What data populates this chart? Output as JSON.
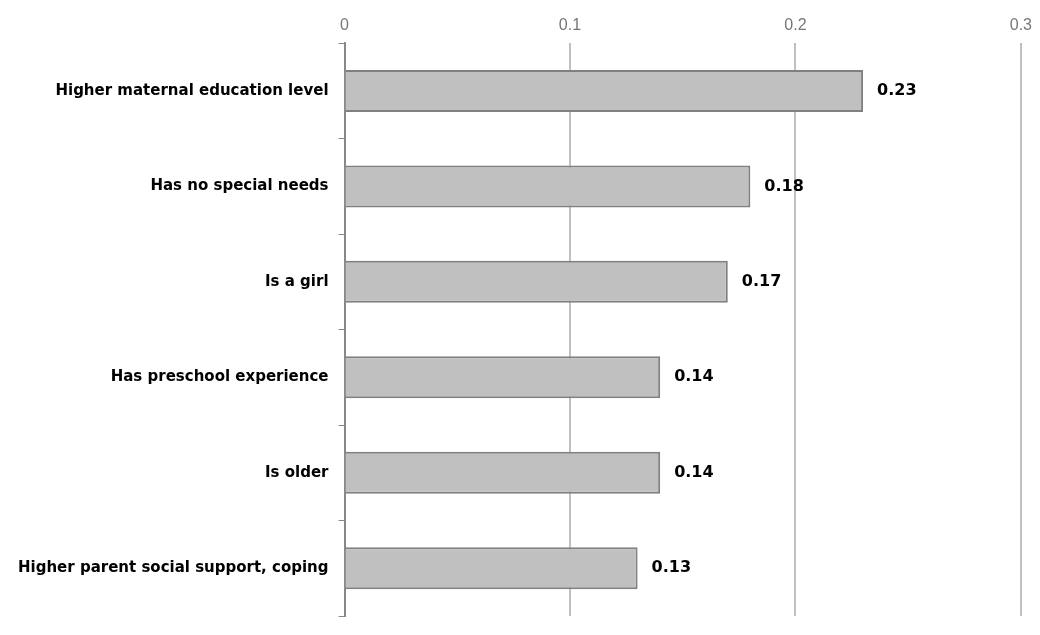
{
  "chart_data": {
    "type": "bar",
    "orientation": "horizontal",
    "categories": [
      "Higher maternal education level",
      "Has no special needs",
      "Is a girl",
      "Has preschool experience",
      "Is older",
      "Higher parent social support, coping"
    ],
    "values": [
      0.23,
      0.18,
      0.17,
      0.14,
      0.14,
      0.13
    ],
    "color": "#c0c0c0",
    "xlim": [
      0,
      0.3
    ],
    "xticks": [
      0,
      0.1,
      0.2,
      0.3
    ],
    "grid": "x",
    "data_labels": true,
    "legend": false
  }
}
